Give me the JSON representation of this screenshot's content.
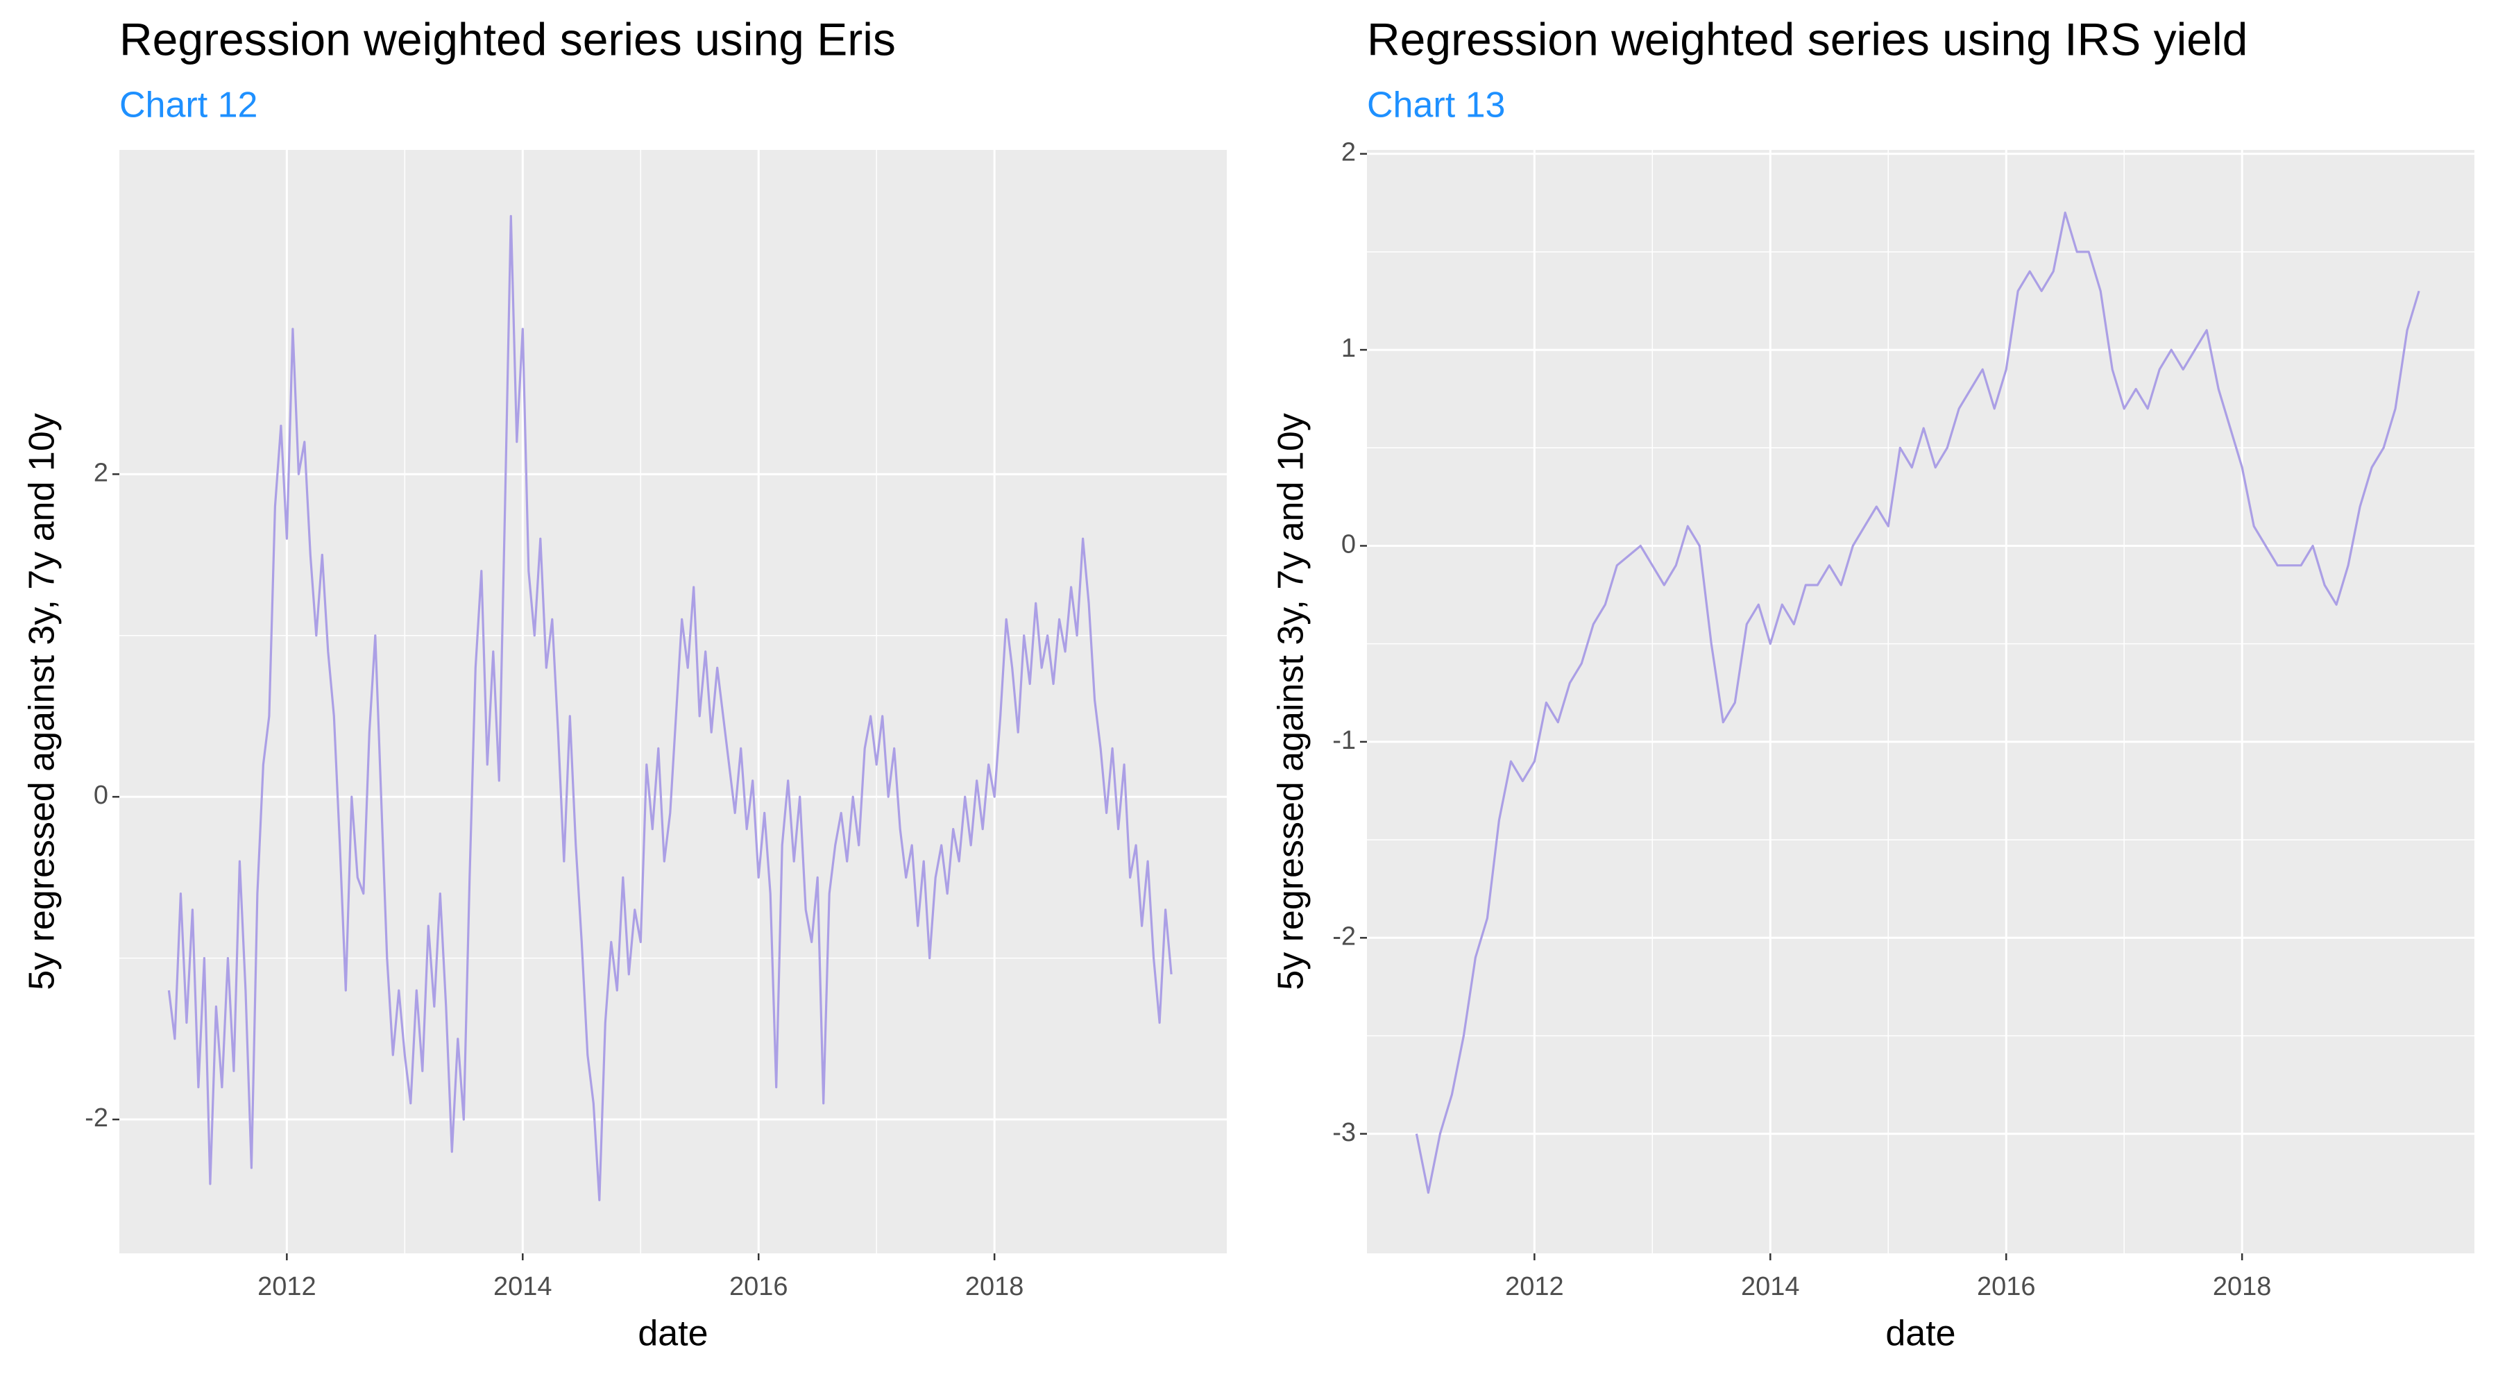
{
  "chart_data": [
    {
      "type": "line",
      "title": "Regression weighted series using Eris",
      "subtitle": "Chart 12",
      "xlabel": "date",
      "ylabel": "5y regressed against 3y, 7y and 10y",
      "x": [
        2011.0,
        2011.05,
        2011.1,
        2011.15,
        2011.2,
        2011.25,
        2011.3,
        2011.35,
        2011.4,
        2011.45,
        2011.5,
        2011.55,
        2011.6,
        2011.65,
        2011.7,
        2011.75,
        2011.8,
        2011.85,
        2011.9,
        2011.95,
        2012.0,
        2012.05,
        2012.1,
        2012.15,
        2012.2,
        2012.25,
        2012.3,
        2012.35,
        2012.4,
        2012.45,
        2012.5,
        2012.55,
        2012.6,
        2012.65,
        2012.7,
        2012.75,
        2012.8,
        2012.85,
        2012.9,
        2012.95,
        2013.0,
        2013.05,
        2013.1,
        2013.15,
        2013.2,
        2013.25,
        2013.3,
        2013.35,
        2013.4,
        2013.45,
        2013.5,
        2013.55,
        2013.6,
        2013.65,
        2013.7,
        2013.75,
        2013.8,
        2013.85,
        2013.9,
        2013.95,
        2014.0,
        2014.05,
        2014.1,
        2014.15,
        2014.2,
        2014.25,
        2014.3,
        2014.35,
        2014.4,
        2014.45,
        2014.5,
        2014.55,
        2014.6,
        2014.65,
        2014.7,
        2014.75,
        2014.8,
        2014.85,
        2014.9,
        2014.95,
        2015.0,
        2015.05,
        2015.1,
        2015.15,
        2015.2,
        2015.25,
        2015.3,
        2015.35,
        2015.4,
        2015.45,
        2015.5,
        2015.55,
        2015.6,
        2015.65,
        2015.7,
        2015.75,
        2015.8,
        2015.85,
        2015.9,
        2015.95,
        2016.0,
        2016.05,
        2016.1,
        2016.15,
        2016.2,
        2016.25,
        2016.3,
        2016.35,
        2016.4,
        2016.45,
        2016.5,
        2016.55,
        2016.6,
        2016.65,
        2016.7,
        2016.75,
        2016.8,
        2016.85,
        2016.9,
        2016.95,
        2017.0,
        2017.05,
        2017.1,
        2017.15,
        2017.2,
        2017.25,
        2017.3,
        2017.35,
        2017.4,
        2017.45,
        2017.5,
        2017.55,
        2017.6,
        2017.65,
        2017.7,
        2017.75,
        2017.8,
        2017.85,
        2017.9,
        2017.95,
        2018.0,
        2018.05,
        2018.1,
        2018.15,
        2018.2,
        2018.25,
        2018.3,
        2018.35,
        2018.4,
        2018.45,
        2018.5,
        2018.55,
        2018.6,
        2018.65,
        2018.7,
        2018.75,
        2018.8,
        2018.85,
        2018.9,
        2018.95,
        2019.0,
        2019.05,
        2019.1,
        2019.15,
        2019.2,
        2019.25,
        2019.3,
        2019.35,
        2019.4,
        2019.45,
        2019.5
      ],
      "values": [
        -1.2,
        -1.5,
        -0.6,
        -1.4,
        -0.7,
        -1.8,
        -1.0,
        -2.4,
        -1.3,
        -1.8,
        -1.0,
        -1.7,
        -0.4,
        -1.2,
        -2.3,
        -0.6,
        0.2,
        0.5,
        1.8,
        2.3,
        1.6,
        2.9,
        2.0,
        2.2,
        1.5,
        1.0,
        1.5,
        0.9,
        0.5,
        -0.3,
        -1.2,
        0.0,
        -0.5,
        -0.6,
        0.4,
        1.0,
        0.0,
        -1.0,
        -1.6,
        -1.2,
        -1.6,
        -1.9,
        -1.2,
        -1.7,
        -0.8,
        -1.3,
        -0.6,
        -1.3,
        -2.2,
        -1.5,
        -2.0,
        -0.5,
        0.8,
        1.4,
        0.2,
        0.9,
        0.1,
        1.8,
        3.6,
        2.2,
        2.9,
        1.4,
        1.0,
        1.6,
        0.8,
        1.1,
        0.4,
        -0.4,
        0.5,
        -0.3,
        -0.9,
        -1.6,
        -1.9,
        -2.5,
        -1.4,
        -0.9,
        -1.2,
        -0.5,
        -1.1,
        -0.7,
        -0.9,
        0.2,
        -0.2,
        0.3,
        -0.4,
        -0.1,
        0.5,
        1.1,
        0.8,
        1.3,
        0.5,
        0.9,
        0.4,
        0.8,
        0.5,
        0.2,
        -0.1,
        0.3,
        -0.2,
        0.1,
        -0.5,
        -0.1,
        -0.6,
        -1.8,
        -0.3,
        0.1,
        -0.4,
        0.0,
        -0.7,
        -0.9,
        -0.5,
        -1.9,
        -0.6,
        -0.3,
        -0.1,
        -0.4,
        0.0,
        -0.3,
        0.3,
        0.5,
        0.2,
        0.5,
        0.0,
        0.3,
        -0.2,
        -0.5,
        -0.3,
        -0.8,
        -0.4,
        -1.0,
        -0.5,
        -0.3,
        -0.6,
        -0.2,
        -0.4,
        0.0,
        -0.3,
        0.1,
        -0.2,
        0.2,
        0.0,
        0.5,
        1.1,
        0.8,
        0.4,
        1.0,
        0.7,
        1.2,
        0.8,
        1.0,
        0.7,
        1.1,
        0.9,
        1.3,
        1.0,
        1.6,
        1.2,
        0.6,
        0.3,
        -0.1,
        0.3,
        -0.2,
        0.2,
        -0.5,
        -0.3,
        -0.8,
        -0.4,
        -1.0,
        -1.4,
        -0.7,
        -1.1
      ],
      "color": "#ab9fe5",
      "xlim": [
        2010.58,
        2019.97
      ],
      "xticks": [
        2012,
        2014,
        2016,
        2018
      ],
      "ylim": [
        -2.83,
        4.01
      ],
      "yticks": [
        -2,
        0,
        2
      ],
      "grid": true
    },
    {
      "type": "line",
      "title": "Regression weighted series using IRS yield",
      "subtitle": "Chart 13",
      "xlabel": "date",
      "ylabel": "5y regressed against 3y, 7y and 10y",
      "x": [
        2011.0,
        2011.1,
        2011.2,
        2011.3,
        2011.4,
        2011.5,
        2011.6,
        2011.7,
        2011.8,
        2011.9,
        2012.0,
        2012.1,
        2012.2,
        2012.3,
        2012.4,
        2012.5,
        2012.6,
        2012.7,
        2012.8,
        2012.9,
        2013.0,
        2013.1,
        2013.2,
        2013.3,
        2013.4,
        2013.5,
        2013.6,
        2013.7,
        2013.8,
        2013.9,
        2014.0,
        2014.1,
        2014.2,
        2014.3,
        2014.4,
        2014.5,
        2014.6,
        2014.7,
        2014.8,
        2014.9,
        2015.0,
        2015.1,
        2015.2,
        2015.3,
        2015.4,
        2015.5,
        2015.6,
        2015.7,
        2015.8,
        2015.9,
        2016.0,
        2016.1,
        2016.2,
        2016.3,
        2016.4,
        2016.5,
        2016.6,
        2016.7,
        2016.8,
        2016.9,
        2017.0,
        2017.1,
        2017.2,
        2017.3,
        2017.4,
        2017.5,
        2017.6,
        2017.7,
        2017.8,
        2017.9,
        2018.0,
        2018.1,
        2018.2,
        2018.3,
        2018.4,
        2018.5,
        2018.6,
        2018.7,
        2018.8,
        2018.9,
        2019.0,
        2019.1,
        2019.2,
        2019.3,
        2019.4,
        2019.5
      ],
      "values": [
        -3.0,
        -3.3,
        -3.0,
        -2.8,
        -2.5,
        -2.1,
        -1.9,
        -1.4,
        -1.1,
        -1.2,
        -1.1,
        -0.8,
        -0.9,
        -0.7,
        -0.6,
        -0.4,
        -0.3,
        -0.1,
        -0.05,
        0.0,
        -0.1,
        -0.2,
        -0.1,
        0.1,
        0.0,
        -0.5,
        -0.9,
        -0.8,
        -0.4,
        -0.3,
        -0.5,
        -0.3,
        -0.4,
        -0.2,
        -0.2,
        -0.1,
        -0.2,
        0.0,
        0.1,
        0.2,
        0.1,
        0.5,
        0.4,
        0.6,
        0.4,
        0.5,
        0.7,
        0.8,
        0.9,
        0.7,
        0.9,
        1.3,
        1.4,
        1.3,
        1.4,
        1.7,
        1.5,
        1.5,
        1.3,
        0.9,
        0.7,
        0.8,
        0.7,
        0.9,
        1.0,
        0.9,
        1.0,
        1.1,
        0.8,
        0.6,
        0.4,
        0.1,
        0.0,
        -0.1,
        -0.1,
        -0.1,
        0.0,
        -0.2,
        -0.3,
        -0.1,
        0.2,
        0.4,
        0.5,
        0.7,
        1.1,
        1.3
      ],
      "color": "#ab9fe5",
      "xlim": [
        2010.58,
        2019.97
      ],
      "xticks": [
        2012,
        2014,
        2016,
        2018
      ],
      "ylim": [
        -3.61,
        2.02
      ],
      "yticks": [
        -3,
        -2,
        -1,
        0,
        1,
        2
      ],
      "grid": true
    }
  ]
}
